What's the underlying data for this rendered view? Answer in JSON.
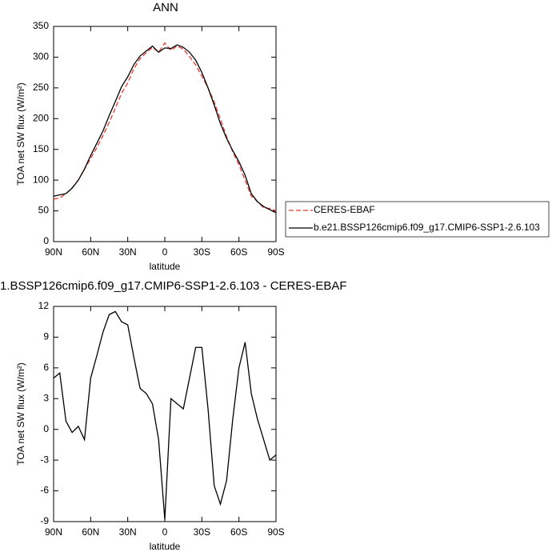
{
  "chart_data": [
    {
      "type": "line",
      "title": "ANN",
      "x_label": "latitude",
      "y_label": "TOA net SW flux (W/m²)",
      "x": [
        90,
        85,
        80,
        75,
        70,
        65,
        60,
        55,
        50,
        45,
        40,
        35,
        30,
        25,
        20,
        15,
        10,
        5,
        0,
        -5,
        -10,
        -15,
        -20,
        -25,
        -30,
        -35,
        -40,
        -45,
        -50,
        -55,
        -60,
        -65,
        -70,
        -75,
        -80,
        -85,
        -90
      ],
      "xlim": [
        90,
        -90
      ],
      "xticks": [
        {
          "value": 90,
          "label": "90N"
        },
        {
          "value": 60,
          "label": "60N"
        },
        {
          "value": 30,
          "label": "30N"
        },
        0,
        {
          "value": -30,
          "label": "30S"
        },
        {
          "value": -60,
          "label": "60S"
        },
        {
          "value": -90,
          "label": "90S"
        }
      ],
      "ylim": [
        0,
        350
      ],
      "yticks": [
        0,
        50,
        100,
        150,
        200,
        250,
        300,
        350
      ],
      "legend": "right",
      "series": [
        {
          "name": "CERES-EBAF",
          "color": "#e8392f",
          "linestyle": "dashed",
          "values": [
            69,
            71,
            78,
            87.5,
            100,
            118,
            135,
            153,
            172.5,
            194,
            217,
            241,
            258,
            281,
            298,
            307,
            316,
            308,
            323,
            311,
            318,
            313,
            301,
            287,
            269,
            250,
            227,
            199,
            171,
            146,
            125,
            100,
            74,
            65,
            55,
            54,
            50
          ]
        },
        {
          "name": "b.e21.BSSP126cmip6.f09_g17.CMIP6-SSP1-2.6.103",
          "color": "#000000",
          "linestyle": "solid",
          "values": [
            74,
            76,
            78,
            87,
            100,
            118,
            140,
            160,
            180,
            205,
            228,
            252,
            268,
            288,
            302,
            310,
            318,
            308,
            315,
            314,
            320,
            316,
            308,
            295,
            275,
            250,
            222,
            192,
            168,
            148,
            130,
            108,
            78,
            65,
            57,
            52,
            47
          ]
        }
      ]
    },
    {
      "type": "line",
      "title": "1.BSSP126cmip6.f09_g17.CMIP6-SSP1-2.6.103 - CERES-EBAF",
      "x_label": "latitude",
      "y_label": "TOA net SW flux (W/m²)",
      "x": [
        90,
        85,
        80,
        75,
        70,
        65,
        60,
        55,
        50,
        45,
        40,
        35,
        30,
        25,
        20,
        15,
        10,
        5,
        0,
        -5,
        -10,
        -15,
        -20,
        -25,
        -30,
        -35,
        -40,
        -45,
        -50,
        -55,
        -60,
        -65,
        -70,
        -75,
        -80,
        -85,
        -90
      ],
      "xlim": [
        90,
        -90
      ],
      "xticks": [
        {
          "value": 90,
          "label": "90N"
        },
        {
          "value": 60,
          "label": "60N"
        },
        {
          "value": 30,
          "label": "30N"
        },
        0,
        {
          "value": -30,
          "label": "30S"
        },
        {
          "value": -60,
          "label": "60S"
        },
        {
          "value": -90,
          "label": "90S"
        }
      ],
      "ylim": [
        -9,
        12
      ],
      "yticks": [
        -9,
        -6,
        -3,
        0,
        3,
        6,
        9,
        12
      ],
      "series": [
        {
          "color": "#000000",
          "linestyle": "solid",
          "values": [
            5,
            5.5,
            0.8,
            -0.3,
            0.3,
            -1,
            5,
            7.2,
            9.5,
            11.2,
            11.5,
            10.5,
            10.2,
            7,
            4,
            3.5,
            2.5,
            -1,
            -8.8,
            3,
            2.5,
            2,
            5,
            8,
            8,
            2,
            -5.5,
            -7.3,
            -5,
            1,
            6,
            8.5,
            3.5,
            1,
            -1,
            -3,
            -2.5
          ]
        }
      ]
    }
  ]
}
